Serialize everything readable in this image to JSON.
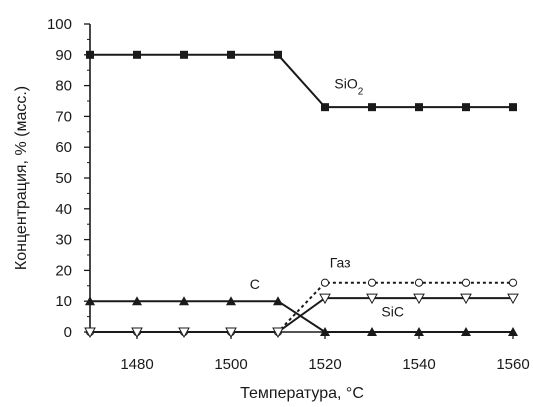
{
  "chart_data": {
    "type": "line",
    "xlabel": "Температура, °С",
    "ylabel": "Концентрация, % (масс.)",
    "xlim": [
      1470,
      1560
    ],
    "ylim": [
      0,
      100
    ],
    "xticks": [
      1480,
      1500,
      1520,
      1540,
      1560
    ],
    "yticks": [
      0,
      10,
      20,
      30,
      40,
      50,
      60,
      70,
      80,
      90,
      100
    ],
    "grid": false,
    "x": [
      1470,
      1480,
      1490,
      1500,
      1510,
      1520,
      1530,
      1540,
      1550,
      1560
    ],
    "series": [
      {
        "name": "SiO2",
        "values": [
          90,
          90,
          90,
          90,
          90,
          73,
          73,
          73,
          73,
          73
        ],
        "marker": "square",
        "line": "solid",
        "color": "#1a1a1a"
      },
      {
        "name": "C",
        "values": [
          10,
          10,
          10,
          10,
          10,
          0,
          0,
          0,
          0,
          0
        ],
        "marker": "triangle-up",
        "line": "solid",
        "color": "#1a1a1a"
      },
      {
        "name": "Газ",
        "values": [
          0,
          0,
          0,
          0,
          0,
          16,
          16,
          16,
          16,
          16
        ],
        "marker": "circle-open",
        "line": "dotted",
        "color": "#1a1a1a"
      },
      {
        "name": "SiC",
        "values": [
          0,
          0,
          0,
          0,
          0,
          11,
          11,
          11,
          11,
          11
        ],
        "marker": "triangle-down-open",
        "line": "solid",
        "color": "#1a1a1a"
      }
    ],
    "annotations": [
      {
        "series": "SiO2",
        "label": "SiO2",
        "at_x": 1522,
        "at_y": 79
      },
      {
        "series": "C",
        "label": "С",
        "at_x": 1504,
        "at_y": 14
      },
      {
        "series": "Газ",
        "label": "Газ",
        "at_x": 1521,
        "at_y": 21
      },
      {
        "series": "SiC",
        "label": "SiC",
        "at_x": 1532,
        "at_y": 5
      }
    ]
  }
}
